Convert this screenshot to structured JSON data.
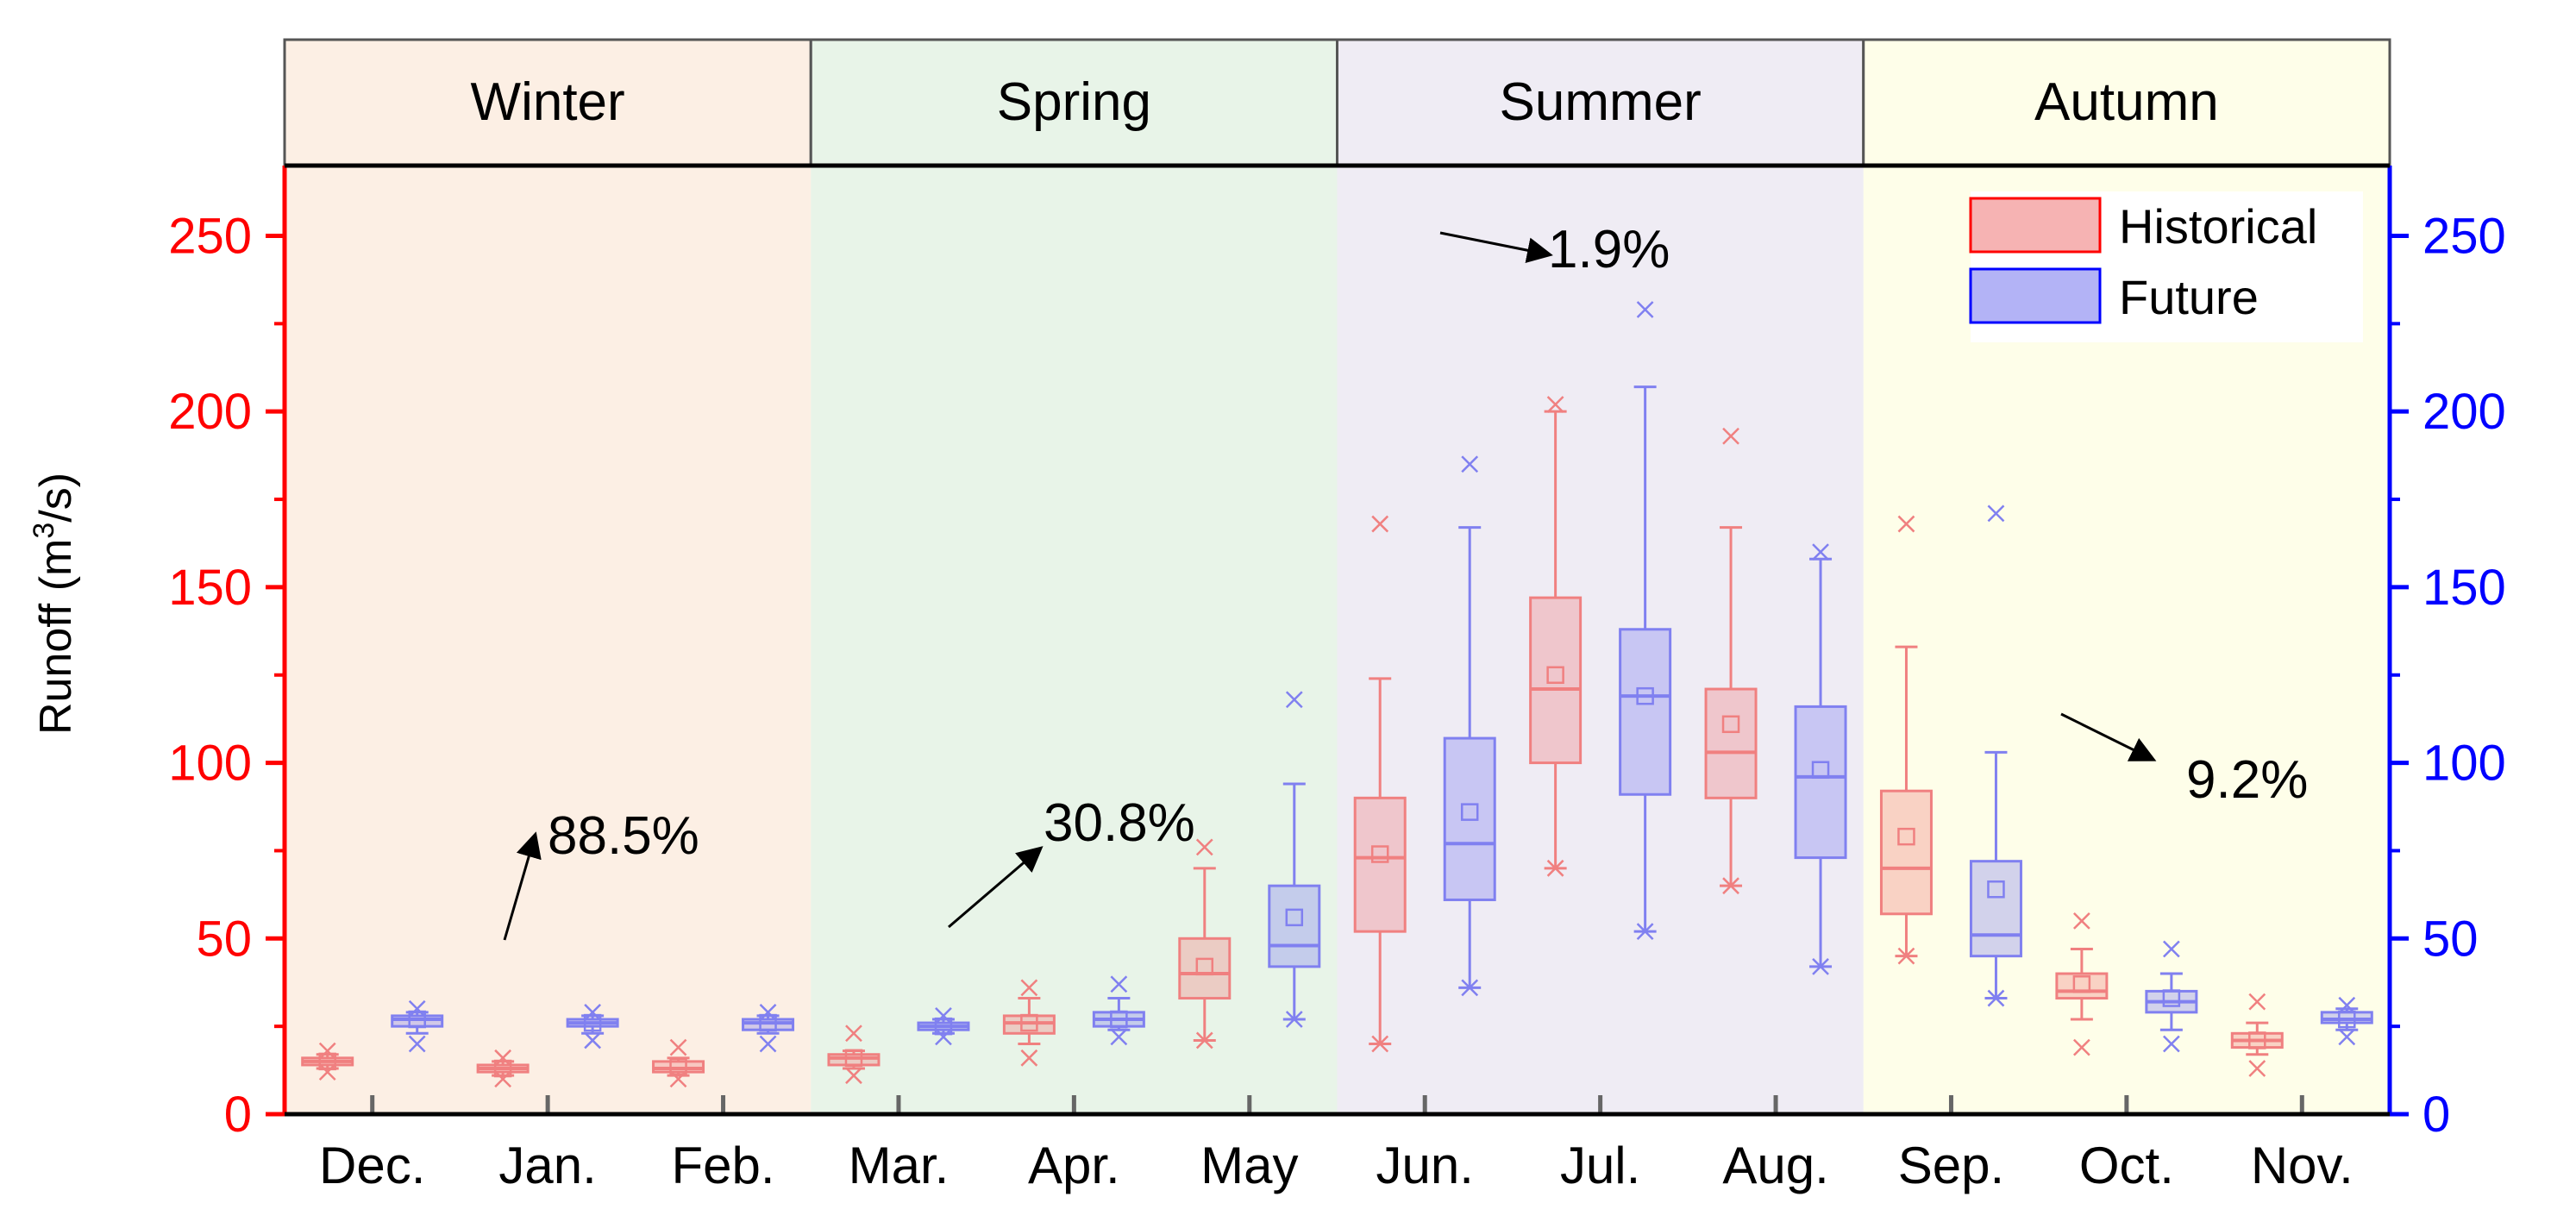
{
  "chart_data": {
    "type": "box",
    "ylabel_main": "Runoff (m",
    "ylabel_sup": "3",
    "ylabel_tail": "/s)",
    "ylim": [
      0,
      270
    ],
    "yticks": [
      0,
      50,
      100,
      150,
      200,
      250
    ],
    "yticks_right": [
      0,
      50,
      100,
      150,
      200,
      250
    ],
    "categories": [
      "Dec.",
      "Jan.",
      "Feb.",
      "Mar.",
      "Apr.",
      "May",
      "Jun.",
      "Jul.",
      "Aug.",
      "Sep.",
      "Oct.",
      "Nov."
    ],
    "seasons": [
      {
        "name": "Winter",
        "start": 0,
        "end": 3,
        "color": "#fcefe4"
      },
      {
        "name": "Spring",
        "start": 3,
        "end": 6,
        "color": "#e8f4e8"
      },
      {
        "name": "Summer",
        "start": 6,
        "end": 9,
        "color": "#efecf4"
      },
      {
        "name": "Autumn",
        "start": 9,
        "end": 12,
        "color": "#fefee9"
      }
    ],
    "colors": {
      "left_axis": "#ff0000",
      "right_axis": "#0000ff",
      "historical": "#f08080",
      "future": "#8080f0"
    },
    "legend": {
      "historical": "Historical",
      "future": "Future"
    },
    "series": [
      {
        "name": "Historical",
        "boxes": [
          {
            "min": 13,
            "q1": 14,
            "median": 15,
            "q3": 16,
            "max": 17,
            "mean": 15,
            "outliers": [
              12,
              18
            ]
          },
          {
            "min": 11,
            "q1": 12,
            "median": 13,
            "q3": 14,
            "max": 15,
            "mean": 13,
            "outliers": [
              10,
              16
            ]
          },
          {
            "min": 11,
            "q1": 12,
            "median": 13,
            "q3": 15,
            "max": 16,
            "mean": 13.5,
            "outliers": [
              10,
              19
            ]
          },
          {
            "min": 13,
            "q1": 14,
            "median": 16,
            "q3": 17,
            "max": 18,
            "mean": 16,
            "outliers": [
              11,
              23
            ]
          },
          {
            "min": 20,
            "q1": 23,
            "median": 26,
            "q3": 28,
            "max": 33,
            "mean": 26,
            "outliers": [
              16,
              36
            ]
          },
          {
            "min": 21,
            "q1": 33,
            "median": 40,
            "q3": 50,
            "max": 70,
            "mean": 42,
            "outliers": [
              21,
              76
            ]
          },
          {
            "min": 20,
            "q1": 52,
            "median": 73,
            "q3": 90,
            "max": 124,
            "mean": 74,
            "outliers": [
              20,
              168
            ]
          },
          {
            "min": 70,
            "q1": 100,
            "median": 121,
            "q3": 147,
            "max": 200,
            "mean": 125,
            "outliers": [
              70,
              202
            ]
          },
          {
            "min": 65,
            "q1": 90,
            "median": 103,
            "q3": 121,
            "max": 167,
            "mean": 111,
            "outliers": [
              65,
              193
            ]
          },
          {
            "min": 45,
            "q1": 57,
            "median": 70,
            "q3": 92,
            "max": 133,
            "mean": 79,
            "outliers": [
              45,
              168
            ]
          },
          {
            "min": 27,
            "q1": 33,
            "median": 35,
            "q3": 40,
            "max": 47,
            "mean": 37,
            "outliers": [
              19,
              55
            ]
          },
          {
            "min": 17,
            "q1": 19,
            "median": 21,
            "q3": 23,
            "max": 26,
            "mean": 21,
            "outliers": [
              13,
              32
            ]
          }
        ]
      },
      {
        "name": "Future",
        "boxes": [
          {
            "min": 23,
            "q1": 25,
            "median": 27,
            "q3": 28,
            "max": 29,
            "mean": 27,
            "outliers": [
              20,
              30
            ]
          },
          {
            "min": 23,
            "q1": 25,
            "median": 26,
            "q3": 27,
            "max": 28,
            "mean": 26,
            "outliers": [
              21,
              29
            ]
          },
          {
            "min": 23,
            "q1": 24,
            "median": 26,
            "q3": 27,
            "max": 28,
            "mean": 26,
            "outliers": [
              20,
              29
            ]
          },
          {
            "min": 23,
            "q1": 24,
            "median": 25,
            "q3": 26,
            "max": 27,
            "mean": 25,
            "outliers": [
              22,
              28
            ]
          },
          {
            "min": 24,
            "q1": 25,
            "median": 27,
            "q3": 29,
            "max": 33,
            "mean": 27,
            "outliers": [
              22,
              37
            ]
          },
          {
            "min": 27,
            "q1": 42,
            "median": 48,
            "q3": 65,
            "max": 94,
            "mean": 56,
            "outliers": [
              27,
              118
            ]
          },
          {
            "min": 36,
            "q1": 61,
            "median": 77,
            "q3": 107,
            "max": 167,
            "mean": 86,
            "outliers": [
              36,
              185
            ]
          },
          {
            "min": 52,
            "q1": 91,
            "median": 119,
            "q3": 138,
            "max": 207,
            "mean": 119,
            "outliers": [
              52,
              229
            ]
          },
          {
            "min": 42,
            "q1": 73,
            "median": 96,
            "q3": 116,
            "max": 158,
            "mean": 98,
            "outliers": [
              42,
              160
            ]
          },
          {
            "min": 33,
            "q1": 45,
            "median": 51,
            "q3": 72,
            "max": 103,
            "mean": 64,
            "outliers": [
              33,
              171
            ]
          },
          {
            "min": 24,
            "q1": 29,
            "median": 32,
            "q3": 35,
            "max": 40,
            "mean": 33,
            "outliers": [
              20,
              47
            ]
          },
          {
            "min": 24,
            "q1": 26,
            "median": 27,
            "q3": 29,
            "max": 30,
            "mean": 27,
            "outliers": [
              22,
              31
            ]
          }
        ]
      }
    ],
    "annotations": [
      {
        "text": "88.5%",
        "season": "Winter",
        "direction": "up"
      },
      {
        "text": "30.8%",
        "season": "Spring",
        "direction": "up"
      },
      {
        "text": "1.9%",
        "season": "Summer",
        "direction": "slight-down"
      },
      {
        "text": "9.2%",
        "season": "Autumn",
        "direction": "down"
      }
    ]
  }
}
